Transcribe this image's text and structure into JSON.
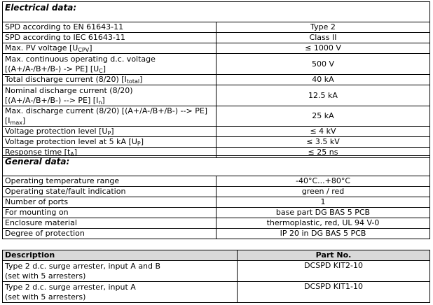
{
  "electrical": {
    "title": "Electrical data:",
    "rows": [
      {
        "pre": "SPD according to EN 61643-11",
        "sub": "",
        "post": "",
        "value": "Type 2"
      },
      {
        "pre": "SPD according to IEC 61643-11",
        "sub": "",
        "post": "",
        "value": "Class II"
      },
      {
        "pre": "Max. PV voltage [U",
        "sub": "CPV",
        "post": "]",
        "value": "≤ 1000 V"
      },
      {
        "pre": "Max. continuous operating d.c. voltage\n[(A+/A-/B+/B-) -> PE] [U",
        "sub": "C",
        "post": "]",
        "value": "500 V"
      },
      {
        "pre": "Total discharge current (8/20) [I",
        "sub": "total",
        "post": "]",
        "value": "40 kA"
      },
      {
        "pre": "Nominal discharge current (8/20)\n[(A+/A-/B+/B-) --> PE] [I",
        "sub": "n",
        "post": "]",
        "value": "12.5 kA"
      },
      {
        "pre": "Max. discharge current (8/20) [(A+/A-/B+/B-) --> PE] [I",
        "sub": "max",
        "post": "]",
        "value": "25 kA"
      },
      {
        "pre": "Voltage protection level [U",
        "sub": "P",
        "post": "]",
        "value": "≤ 4 kV"
      },
      {
        "pre": "Voltage protection level at 5 kA [U",
        "sub": "P",
        "post": "]",
        "value": "≤ 3.5 kV"
      },
      {
        "pre": "Response time [t",
        "sub": "A",
        "post": "]",
        "value": "≤ 25 ns"
      }
    ]
  },
  "general": {
    "title": "General data:",
    "rows": [
      {
        "label": "Operating temperature range",
        "value": "-40°C...+80°C"
      },
      {
        "label": "Operating state/fault indication",
        "value": "green / red"
      },
      {
        "label": "Number of ports",
        "value": "1"
      },
      {
        "label": "For mounting on",
        "value": "base part DG BAS 5 PCB"
      },
      {
        "label": "Enclosure material",
        "value": "thermoplastic, red, UL 94 V-0"
      },
      {
        "label": "Degree of protection",
        "value": "IP 20 in DG BAS 5 PCB"
      }
    ]
  },
  "parts": {
    "headers": [
      "Description",
      "Part No."
    ],
    "rows": [
      {
        "description": "Type 2 d.c. surge arrester, input A and B\n(set with 5 arresters)",
        "part_no": "DCSPD KIT2-10"
      },
      {
        "description": "Type 2 d.c. surge arrester, input A\n(set with 5 arresters)",
        "part_no": "DCSPD KIT1-10"
      }
    ]
  }
}
